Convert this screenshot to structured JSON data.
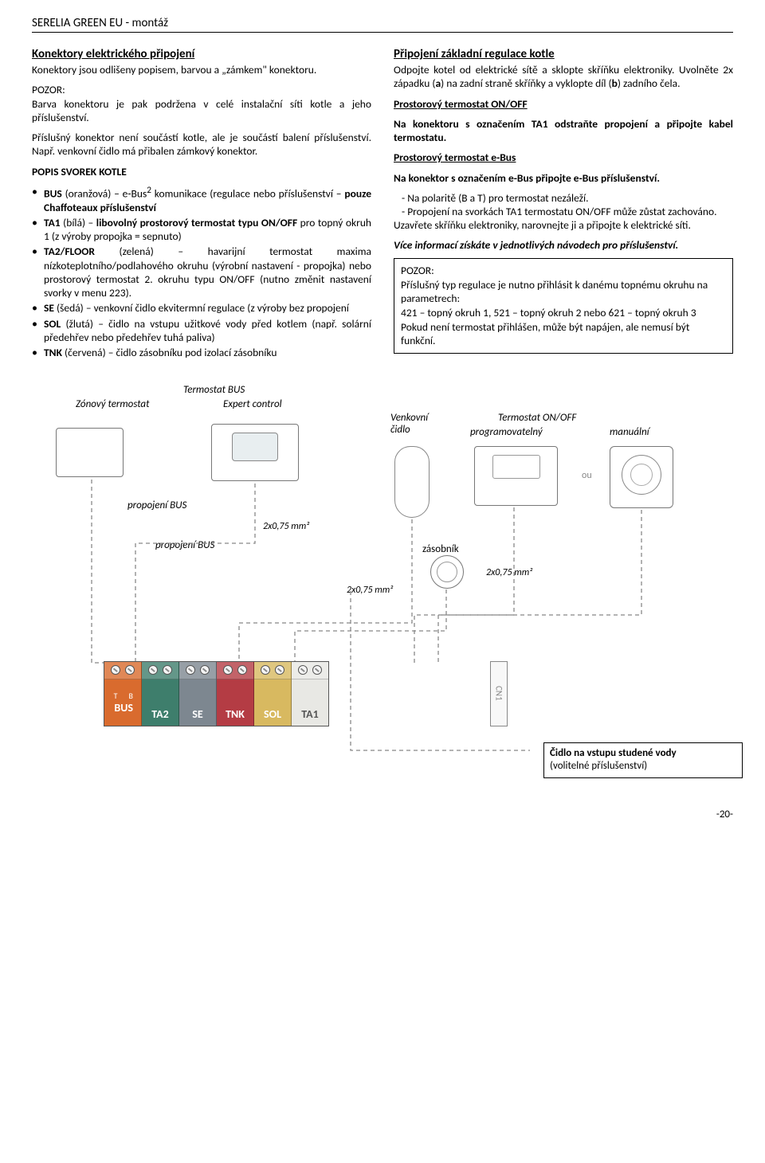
{
  "header": "SERELIA GREEN EU - montáž",
  "left": {
    "h": "Konektory elektrického připojení",
    "p1a": "Konektory jsou odlišeny popisem, barvou a „zámkem\" konektoru.",
    "p1b_label": "POZOR:",
    "p1b": "Barva konektoru je pak podržena v celé instalační síti kotle a jeho příslušenství.",
    "p2": "Příslušný konektor není součástí kotle, ale je součástí balení příslušenství. Např. venkovní čidlo má přibalen zámkový konektor.",
    "h2": "POPIS SVOREK KOTLE",
    "b1": "BUS (oranžová) – e-Bus² komunikace (regulace nebo příslušenství – pouze Chaffoteaux příslušenství",
    "b2": "TA1 (bílá) – libovolný prostorový termostat typu ON/OFF pro topný okruh 1 (z výroby propojka = sepnuto)",
    "b3": "TA2/FLOOR (zelená) – havarijní termostat maxima nízkoteplotního/podlahového okruhu (výrobní nastavení - propojka) nebo prostorový termostat 2. okruhu typu ON/OFF (nutno změnit nastavení svorky v menu 223).",
    "b4": "SE (šedá) – venkovní čidlo ekvitermní regulace (z výroby bez propojení",
    "b5": "SOL (žlutá) – čidlo na vstupu užitkové vody před kotlem (např. solární předehřev nebo předehřev tuhá paliva)",
    "b6": "TNK (červená) – čidlo zásobníku pod izolací zásobníku"
  },
  "right": {
    "h": "Připojení základní regulace kotle",
    "p1": "Odpojte kotel od elektrické sítě a sklopte skříňku elektroniky. Uvolněte 2x západku (a) na zadní straně skříňky a vyklopte díl (b) zadního čela.",
    "h2": "Prostorový termostat ON/OFF",
    "p2": "Na konektoru s označením TA1 odstraňte propojení a připojte kabel termostatu.",
    "h3": "Prostorový termostat e-Bus",
    "p3": "Na konektor s označením e-Bus připojte e-Bus příslušenství.",
    "d1": "Na polaritě (B a T) pro termostat nezáleží.",
    "d2": "Propojení na svorkách TA1 termostatu ON/OFF může zůstat zachováno.",
    "p4": "Uzavřete skříňku elektroniky, narovnejte ji a připojte k elektrické síti.",
    "p5": "Více informací získáte v jednotlivých návodech pro příslušenství.",
    "box": "POZOR:\nPříslušný typ regulace je nutno přihlásit k danému topnému okruhu na parametrech:\n421 – topný okruh 1, 521 – topný okruh 2 nebo 621 – topný okruh 3\nPokud není termostat přihlášen, může být napájen, ale nemusí být funkční."
  },
  "diagram": {
    "labels": {
      "zone": "Zónový termostat",
      "tbus": "Termostat BUS",
      "expert": "Expert control",
      "outdoor": "Venkovní\nčidlo",
      "onoff": "Termostat ON/OFF",
      "prog": "programovatelný",
      "manual": "manuální",
      "link1": "propojení BUS",
      "link2": "propojení BUS",
      "zasob": "zásobník",
      "w1": "2x0,75 mm²",
      "w2": "2x0,75 mm²",
      "w3": "2x0,75 mm²",
      "ou": "ou",
      "cn1": "CN1"
    },
    "sublabels": {
      "T": "T",
      "B": "B"
    },
    "callout": "Čidlo na vstupu studené vody\n(volitelné příslušenství)",
    "terminals": [
      {
        "name": "BUS",
        "color": "#d96b2e",
        "screws": 2,
        "sub": true
      },
      {
        "name": "TA2",
        "color": "#3e7e6c",
        "screws": 2
      },
      {
        "name": "SE",
        "color": "#7d8790",
        "screws": 2
      },
      {
        "name": "TNK",
        "color": "#b43c44",
        "screws": 2
      },
      {
        "name": "SOL",
        "color": "#d8b960",
        "screws": 2
      },
      {
        "name": "TA1",
        "color": "#e8e8e4",
        "screws": 2,
        "dark": true
      }
    ]
  },
  "pagenum": "-20-"
}
